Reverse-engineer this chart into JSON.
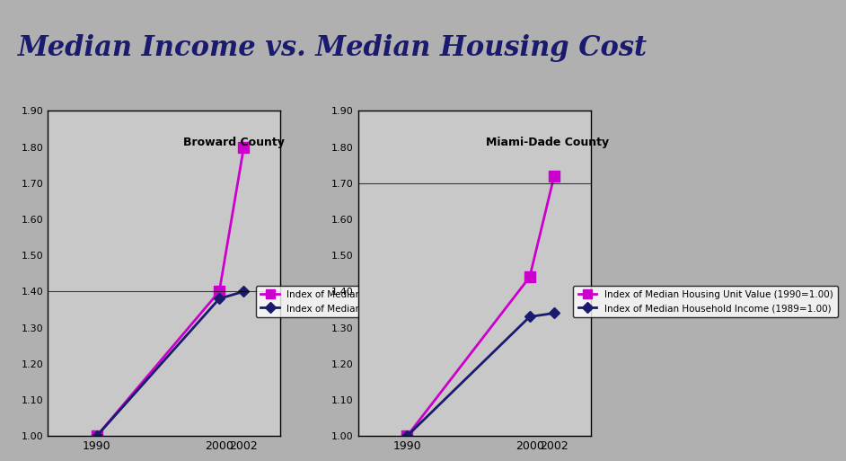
{
  "title": "Median Income vs. Median Housing Cost",
  "title_fontsize": 22,
  "title_color": "#1a1a6e",
  "title_fontstyle": "italic",
  "title_fontweight": "bold",
  "background_image_alpha": 0.35,
  "broward": {
    "label": "Broward County",
    "years": [
      1990,
      2000,
      2002
    ],
    "housing": [
      1.0,
      1.4,
      1.8
    ],
    "income": [
      1.0,
      1.38,
      1.4
    ],
    "ylim": [
      1.0,
      1.9
    ],
    "yticks": [
      1.0,
      1.1,
      1.2,
      1.3,
      1.4,
      1.5,
      1.6,
      1.7,
      1.8,
      1.9
    ]
  },
  "miami": {
    "label": "Miami-Dade County",
    "years": [
      1990,
      2000,
      2002
    ],
    "housing": [
      1.0,
      1.44,
      1.72
    ],
    "income": [
      1.0,
      1.33,
      1.34
    ],
    "ylim": [
      1.0,
      1.9
    ],
    "yticks": [
      1.0,
      1.1,
      1.2,
      1.3,
      1.4,
      1.5,
      1.6,
      1.7,
      1.8,
      1.9
    ]
  },
  "housing_color": "#cc00cc",
  "income_color": "#1a1a6e",
  "housing_marker": "s",
  "income_marker": "D",
  "legend_housing": "Index of Median Housing Unit Value (1990=1.00)",
  "legend_income": "Index of Median Household Income (1989=1.00)",
  "panel_bg": "#c8c8c8",
  "fig_bg": "#d0d0d0"
}
